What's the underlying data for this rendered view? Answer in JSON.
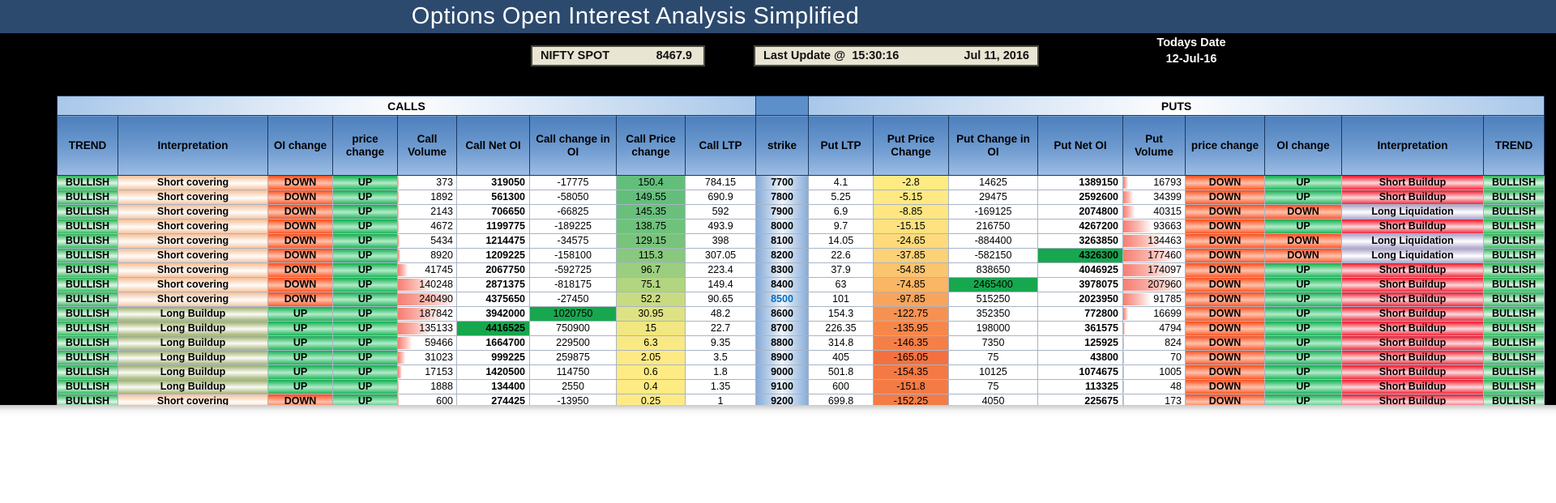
{
  "title": "Options Open Interest Analysis Simplified",
  "info": {
    "nifty_spot_label": "NIFTY SPOT",
    "nifty_spot_value": "8467.9",
    "last_update_label": "Last Update @",
    "last_update_time": "15:30:16",
    "last_update_date": "Jul 11, 2016",
    "todays_date_label": "Todays Date",
    "todays_date_value": "12-Jul-16"
  },
  "colors": {
    "title_bar": "#2c4a6e",
    "sheet_background": "#000000",
    "info_box": "#e9e5d3",
    "header_blue": "#4d80bd",
    "strike_band": "#5d8fcb",
    "green_highlight_cell": "#17a74f",
    "atm_strike_text": "#0070c0",
    "up_green": "#17b054",
    "down_red": "#fd5321",
    "bullish_green": "#2fb65a",
    "short_covering_peach": "#f5c29c",
    "long_buildup_olive": "#9fb074",
    "short_buildup_red": "#ef1e31",
    "long_liquidation_lavender": "#b2a5ce",
    "volume_bar_pink": "#f67d72"
  },
  "table": {
    "group_headers": {
      "calls": "CALLS",
      "puts": "PUTS"
    },
    "columns": [
      "TREND",
      "Interpretation",
      "OI change",
      "price change",
      "Call Volume",
      "Call Net OI",
      "Call change in OI",
      "Call Price change",
      "Call LTP",
      "strike",
      "Put LTP",
      "Put Price Change",
      "Put Change in OI",
      "Put Net OI",
      "Put Volume",
      "price change",
      "OI change",
      "Interpretation",
      "TREND"
    ],
    "atm_strike": 8500,
    "max_call_volume": 240490,
    "max_put_volume": 207960,
    "rows": [
      {
        "trend_call": "BULLISH",
        "interp_call": "Short covering",
        "oi_change_call": "DOWN",
        "price_change_call": "UP",
        "call_volume": 373,
        "call_net_oi": 319050,
        "call_change_oi": -17775,
        "call_price_change": 150.4,
        "call_price_change_color": "#63BE7B",
        "call_ltp": 784.15,
        "strike": 7700,
        "put_ltp": 4.1,
        "put_price_change": -2.8,
        "put_price_change_color": "#FFEB84",
        "put_change_oi": 14625,
        "put_net_oi": 1389150,
        "put_volume": 16793,
        "price_change_put": "DOWN",
        "oi_change_put": "UP",
        "interp_put": "Short Buildup",
        "trend_put": "BULLISH"
      },
      {
        "trend_call": "BULLISH",
        "interp_call": "Short covering",
        "oi_change_call": "DOWN",
        "price_change_call": "UP",
        "call_volume": 1892,
        "call_net_oi": 561300,
        "call_change_oi": -58050,
        "call_price_change": 149.55,
        "call_price_change_color": "#64BE7B",
        "call_ltp": 690.9,
        "strike": 7800,
        "put_ltp": 5.25,
        "put_price_change": -5.15,
        "put_price_change_color": "#FFE983",
        "put_change_oi": 29475,
        "put_net_oi": 2592600,
        "put_volume": 34399,
        "price_change_put": "DOWN",
        "oi_change_put": "UP",
        "interp_put": "Short Buildup",
        "trend_put": "BULLISH"
      },
      {
        "trend_call": "BULLISH",
        "interp_call": "Short covering",
        "oi_change_call": "DOWN",
        "price_change_call": "UP",
        "call_volume": 2143,
        "call_net_oi": 706650,
        "call_change_oi": -66825,
        "call_price_change": 145.35,
        "call_price_change_color": "#68C07B",
        "call_ltp": 592,
        "strike": 7900,
        "put_ltp": 6.9,
        "put_price_change": -8.85,
        "put_price_change_color": "#FFE681",
        "put_change_oi": -169125,
        "put_net_oi": 2074800,
        "put_volume": 40315,
        "price_change_put": "DOWN",
        "oi_change_put": "DOWN",
        "interp_put": "Long Liquidation",
        "trend_put": "BULLISH"
      },
      {
        "trend_call": "BULLISH",
        "interp_call": "Short covering",
        "oi_change_call": "DOWN",
        "price_change_call": "UP",
        "call_volume": 4672,
        "call_net_oi": 1199775,
        "call_change_oi": -189225,
        "call_price_change": 138.75,
        "call_price_change_color": "#6FC27C",
        "call_ltp": 493.9,
        "strike": 8000,
        "put_ltp": 9.7,
        "put_price_change": -15.15,
        "put_price_change_color": "#FEE27F",
        "put_change_oi": 216750,
        "put_net_oi": 4267200,
        "put_volume": 93663,
        "price_change_put": "DOWN",
        "oi_change_put": "UP",
        "interp_put": "Short Buildup",
        "trend_put": "BULLISH"
      },
      {
        "trend_call": "BULLISH",
        "interp_call": "Short covering",
        "oi_change_call": "DOWN",
        "price_change_call": "UP",
        "call_volume": 5434,
        "call_net_oi": 1214475,
        "call_change_oi": -34575,
        "call_price_change": 129.15,
        "call_price_change_color": "#79C47C",
        "call_ltp": 398,
        "strike": 8100,
        "put_ltp": 14.05,
        "put_price_change": -24.65,
        "put_price_change_color": "#FEDA7B",
        "put_change_oi": -884400,
        "put_net_oi": 3263850,
        "put_volume": 134463,
        "price_change_put": "DOWN",
        "oi_change_put": "DOWN",
        "interp_put": "Long Liquidation",
        "trend_put": "BULLISH"
      },
      {
        "trend_call": "BULLISH",
        "interp_call": "Short covering",
        "oi_change_call": "DOWN",
        "price_change_call": "UP",
        "call_volume": 8920,
        "call_net_oi": 1209225,
        "call_change_oi": -158100,
        "call_price_change": 115.3,
        "call_price_change_color": "#88C97D",
        "call_ltp": 307.05,
        "strike": 8200,
        "put_ltp": 22.6,
        "put_price_change": -37.85,
        "put_price_change_color": "#FDD175",
        "put_change_oi": -582150,
        "put_net_oi": 4326300,
        "put_net_oi_green": true,
        "put_volume": 177460,
        "price_change_put": "DOWN",
        "oi_change_put": "DOWN",
        "interp_put": "Long Liquidation",
        "trend_put": "BULLISH"
      },
      {
        "trend_call": "BULLISH",
        "interp_call": "Short covering",
        "oi_change_call": "DOWN",
        "price_change_call": "UP",
        "call_volume": 41745,
        "call_net_oi": 2067750,
        "call_change_oi": -592725,
        "call_price_change": 96.7,
        "call_price_change_color": "#9BCE7E",
        "call_ltp": 223.4,
        "strike": 8300,
        "put_ltp": 37.9,
        "put_price_change": -54.85,
        "put_price_change_color": "#FBC46E",
        "put_change_oi": 838650,
        "put_net_oi": 4046925,
        "put_volume": 174097,
        "price_change_put": "DOWN",
        "oi_change_put": "UP",
        "interp_put": "Short Buildup",
        "trend_put": "BULLISH"
      },
      {
        "trend_call": "BULLISH",
        "interp_call": "Short covering",
        "oi_change_call": "DOWN",
        "price_change_call": "UP",
        "call_volume": 140248,
        "call_net_oi": 2871375,
        "call_change_oi": -818175,
        "call_price_change": 75.1,
        "call_price_change_color": "#B1D580",
        "call_ltp": 149.4,
        "strike": 8400,
        "put_ltp": 63,
        "put_price_change": -74.85,
        "put_price_change_color": "#FAB565",
        "put_change_oi": 2465400,
        "put_change_oi_green": true,
        "put_net_oi": 3978075,
        "put_volume": 207960,
        "price_change_put": "DOWN",
        "oi_change_put": "UP",
        "interp_put": "Short Buildup",
        "trend_put": "BULLISH"
      },
      {
        "trend_call": "BULLISH",
        "interp_call": "Short covering",
        "oi_change_call": "DOWN",
        "price_change_call": "UP",
        "call_volume": 240490,
        "call_net_oi": 4375650,
        "call_change_oi": -27450,
        "call_price_change": 52.2,
        "call_price_change_color": "#C9DB81",
        "call_ltp": 90.65,
        "strike": 8500,
        "put_ltp": 101,
        "put_price_change": -97.85,
        "put_price_change_color": "#F9A45C",
        "put_change_oi": 515250,
        "put_net_oi": 2023950,
        "put_volume": 91785,
        "price_change_put": "DOWN",
        "oi_change_put": "UP",
        "interp_put": "Short Buildup",
        "trend_put": "BULLISH"
      },
      {
        "trend_call": "BULLISH",
        "interp_call": "Long Buildup",
        "oi_change_call": "UP",
        "price_change_call": "UP",
        "call_volume": 187842,
        "call_net_oi": 3942000,
        "call_change_oi": 1020750,
        "call_change_oi_green": true,
        "call_price_change": 30.95,
        "call_price_change_color": "#DFE282",
        "call_ltp": 48.2,
        "strike": 8600,
        "put_ltp": 154.3,
        "put_price_change": -122.75,
        "put_price_change_color": "#F79151",
        "put_change_oi": 352350,
        "put_net_oi": 772800,
        "put_volume": 16699,
        "price_change_put": "DOWN",
        "oi_change_put": "UP",
        "interp_put": "Short Buildup",
        "trend_put": "BULLISH"
      },
      {
        "trend_call": "BULLISH",
        "interp_call": "Long Buildup",
        "oi_change_call": "UP",
        "price_change_call": "UP",
        "call_volume": 135133,
        "call_net_oi": 4416525,
        "call_net_oi_green": true,
        "call_change_oi": 750900,
        "call_price_change": 15,
        "call_price_change_color": "#F0E783",
        "call_ltp": 22.7,
        "strike": 8700,
        "put_ltp": 226.35,
        "put_price_change": -135.95,
        "put_price_change_color": "#F6874B",
        "put_change_oi": 198000,
        "put_net_oi": 361575,
        "put_volume": 4794,
        "price_change_put": "DOWN",
        "oi_change_put": "UP",
        "interp_put": "Short Buildup",
        "trend_put": "BULLISH"
      },
      {
        "trend_call": "BULLISH",
        "interp_call": "Long Buildup",
        "oi_change_call": "UP",
        "price_change_call": "UP",
        "call_volume": 59466,
        "call_net_oi": 1664700,
        "call_change_oi": 229500,
        "call_price_change": 6.3,
        "call_price_change_color": "#F9E984",
        "call_ltp": 9.35,
        "strike": 8800,
        "put_ltp": 314.8,
        "put_price_change": -146.35,
        "put_price_change_color": "#F57F47",
        "put_change_oi": 7350,
        "put_net_oi": 125925,
        "put_volume": 824,
        "price_change_put": "DOWN",
        "oi_change_put": "UP",
        "interp_put": "Short Buildup",
        "trend_put": "BULLISH"
      },
      {
        "trend_call": "BULLISH",
        "interp_call": "Long Buildup",
        "oi_change_call": "UP",
        "price_change_call": "UP",
        "call_volume": 31023,
        "call_net_oi": 999225,
        "call_change_oi": 259875,
        "call_price_change": 2.05,
        "call_price_change_color": "#FDEA84",
        "call_ltp": 3.5,
        "strike": 8900,
        "put_ltp": 405,
        "put_price_change": -165.05,
        "put_price_change_color": "#F4713F",
        "put_change_oi": 75,
        "put_net_oi": 43800,
        "put_volume": 70,
        "price_change_put": "DOWN",
        "oi_change_put": "UP",
        "interp_put": "Short Buildup",
        "trend_put": "BULLISH"
      },
      {
        "trend_call": "BULLISH",
        "interp_call": "Long Buildup",
        "oi_change_call": "UP",
        "price_change_call": "UP",
        "call_volume": 17153,
        "call_net_oi": 1420500,
        "call_change_oi": 114750,
        "call_price_change": 0.6,
        "call_price_change_color": "#FFEB84",
        "call_ltp": 1.8,
        "strike": 9000,
        "put_ltp": 501.8,
        "put_price_change": -154.35,
        "put_price_change_color": "#F57944",
        "put_change_oi": 10125,
        "put_net_oi": 1074675,
        "put_volume": 1005,
        "price_change_put": "DOWN",
        "oi_change_put": "UP",
        "interp_put": "Short Buildup",
        "trend_put": "BULLISH"
      },
      {
        "trend_call": "BULLISH",
        "interp_call": "Long Buildup",
        "oi_change_call": "UP",
        "price_change_call": "UP",
        "call_volume": 1888,
        "call_net_oi": 134400,
        "call_change_oi": 2550,
        "call_price_change": 0.4,
        "call_price_change_color": "#FFEB84",
        "call_ltp": 1.35,
        "strike": 9100,
        "put_ltp": 600,
        "put_price_change": -151.8,
        "put_price_change_color": "#F57B45",
        "put_change_oi": 75,
        "put_net_oi": 113325,
        "put_volume": 48,
        "price_change_put": "DOWN",
        "oi_change_put": "UP",
        "interp_put": "Short Buildup",
        "trend_put": "BULLISH"
      },
      {
        "trend_call": "BULLISH",
        "interp_call": "Short covering",
        "oi_change_call": "DOWN",
        "price_change_call": "UP",
        "call_volume": 600,
        "call_net_oi": 274425,
        "call_change_oi": -13950,
        "call_price_change": 0.25,
        "call_price_change_color": "#FFEB84",
        "call_ltp": 1,
        "strike": 9200,
        "put_ltp": 699.8,
        "put_price_change": -152.25,
        "put_price_change_color": "#F57B45",
        "put_change_oi": 4050,
        "put_net_oi": 225675,
        "put_volume": 173,
        "price_change_put": "DOWN",
        "oi_change_put": "UP",
        "interp_put": "Short Buildup",
        "trend_put": "BULLISH"
      }
    ]
  }
}
